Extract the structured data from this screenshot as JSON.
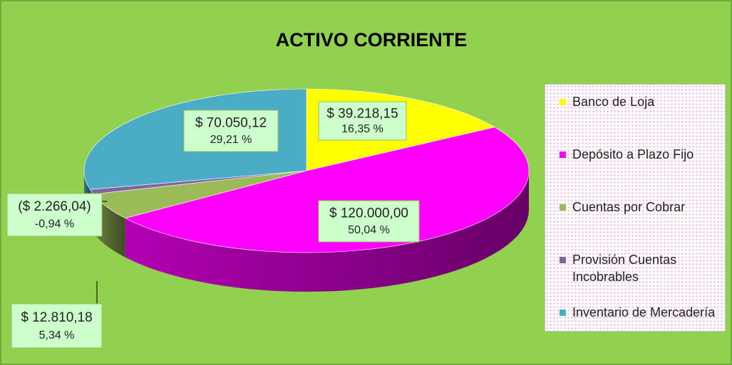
{
  "chart_data": {
    "type": "pie",
    "title": "ACTIVO CORRIENTE",
    "categories": [
      "Banco de Loja",
      "Depósito a Plazo Fijo",
      "Cuentas por Cobrar",
      "Provisión Cuentas Incobrables",
      "Inventario de Mercadería"
    ],
    "values": [
      39218.15,
      120000.0,
      12810.18,
      -2266.04,
      70050.12
    ],
    "value_labels": [
      "$ 39.218,15",
      "$ 120.000,00",
      "$ 12.810,18",
      "($ 2.266,04)",
      "$ 70.050,12"
    ],
    "percentages": [
      16.35,
      50.04,
      5.34,
      -0.94,
      29.21
    ],
    "percentage_labels": [
      "16,35 %",
      "50,04 %",
      "5,34 %",
      "-0,94 %",
      "29,21 %"
    ],
    "colors": [
      "#ffff00",
      "#ff00ff",
      "#9bbb59",
      "#8064a2",
      "#4bacc6"
    ],
    "legend": "right"
  }
}
